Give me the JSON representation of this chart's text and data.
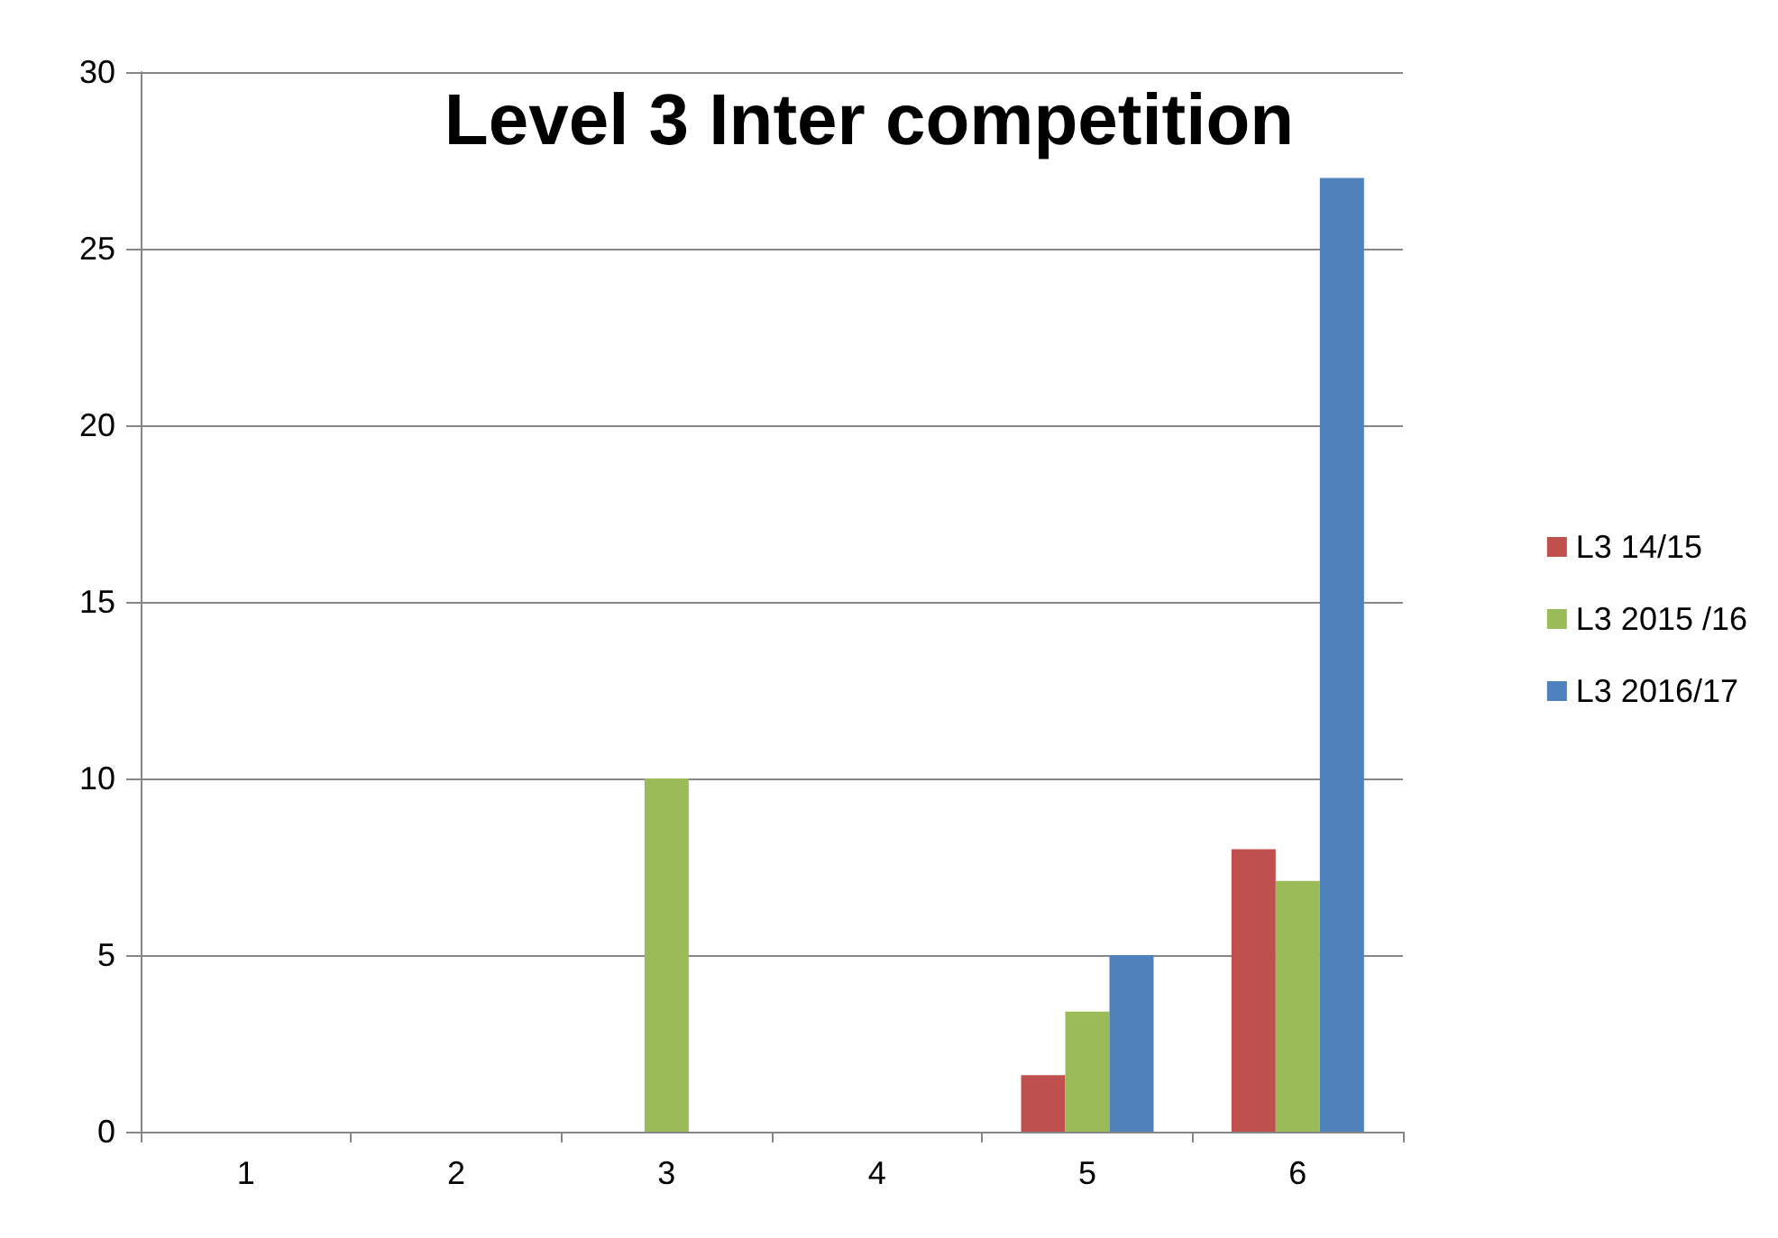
{
  "chart_data": {
    "type": "bar",
    "title": "Level 3 Inter competition",
    "categories": [
      "1",
      "2",
      "3",
      "4",
      "5",
      "6"
    ],
    "series": [
      {
        "name": "L3 14/15",
        "color": "#c0504d",
        "values": [
          0,
          0,
          0,
          0,
          1.6,
          8
        ]
      },
      {
        "name": "L3 2015 /16",
        "color": "#9bbb59",
        "values": [
          0,
          0,
          10,
          0,
          3.4,
          7.1
        ]
      },
      {
        "name": "L3 2016/17",
        "color": "#4f81bd",
        "values": [
          0,
          0,
          0,
          0,
          5,
          27
        ]
      }
    ],
    "ylim": [
      0,
      30
    ],
    "yticks": [
      0,
      5,
      10,
      15,
      20,
      25,
      30
    ],
    "grid": "y",
    "legend": "right"
  }
}
